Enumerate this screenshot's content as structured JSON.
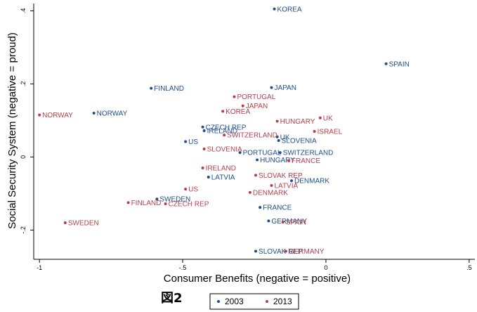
{
  "chart_data": {
    "type": "scatter",
    "title": "",
    "xlabel": "Consumer Benefits (negative = positive)",
    "ylabel": "Social Security System (negative = proud)",
    "xlim": [
      -1.02,
      0.52
    ],
    "ylim": [
      -0.28,
      0.42
    ],
    "xticks": [
      -1,
      -0.5,
      0,
      0.5
    ],
    "xtick_labels": [
      "-1",
      "-.5",
      "0",
      ".5"
    ],
    "yticks": [
      -0.2,
      0,
      0.2,
      0.4
    ],
    "ytick_labels": [
      "-.2",
      "0",
      ".2",
      ".4"
    ],
    "figure_label": "図2",
    "legend_position": "bottom-center",
    "series": [
      {
        "name": "2003",
        "color": "#1f4e8c",
        "points": [
          {
            "label": "KOREA",
            "x": -0.18,
            "y": 0.405
          },
          {
            "label": "SPAIN",
            "x": 0.21,
            "y": 0.255
          },
          {
            "label": "FINLAND",
            "x": -0.61,
            "y": 0.188
          },
          {
            "label": "JAPAN",
            "x": -0.19,
            "y": 0.19
          },
          {
            "label": "NORWAY",
            "x": -0.81,
            "y": 0.12
          },
          {
            "label": "CZECH REP",
            "x": -0.43,
            "y": 0.082
          },
          {
            "label": "IRELAND",
            "x": -0.425,
            "y": 0.072
          },
          {
            "label": "UK",
            "x": -0.17,
            "y": 0.055
          },
          {
            "label": "SLOVENIA",
            "x": -0.165,
            "y": 0.045
          },
          {
            "label": "US",
            "x": -0.49,
            "y": 0.042
          },
          {
            "label": "PORTUGAL",
            "x": -0.3,
            "y": 0.012
          },
          {
            "label": "SWITZERLAND",
            "x": -0.16,
            "y": 0.012
          },
          {
            "label": "HUNGARY",
            "x": -0.24,
            "y": -0.008
          },
          {
            "label": "DENMARK",
            "x": -0.12,
            "y": -0.065
          },
          {
            "label": "LATVIA",
            "x": -0.41,
            "y": -0.055
          },
          {
            "label": "SWEDEN",
            "x": -0.59,
            "y": -0.115
          },
          {
            "label": "FRANCE",
            "x": -0.23,
            "y": -0.138
          },
          {
            "label": "GERMANY",
            "x": -0.2,
            "y": -0.175
          },
          {
            "label": "SLOVAK REP",
            "x": -0.245,
            "y": -0.258
          }
        ]
      },
      {
        "name": "2013",
        "color": "#b5404b",
        "points": [
          {
            "label": "PORTUGAL",
            "x": -0.32,
            "y": 0.165
          },
          {
            "label": "JAPAN",
            "x": -0.29,
            "y": 0.14
          },
          {
            "label": "KOREA",
            "x": -0.36,
            "y": 0.125
          },
          {
            "label": "NORWAY",
            "x": -1.0,
            "y": 0.115
          },
          {
            "label": "UK",
            "x": -0.02,
            "y": 0.107
          },
          {
            "label": "HUNGARY",
            "x": -0.17,
            "y": 0.098
          },
          {
            "label": "ISRAEL",
            "x": -0.04,
            "y": 0.07
          },
          {
            "label": "SWITZERLAND",
            "x": -0.355,
            "y": 0.06
          },
          {
            "label": "SLOVENIA",
            "x": -0.425,
            "y": 0.022
          },
          {
            "label": "FRANCE",
            "x": -0.13,
            "y": -0.01
          },
          {
            "label": "IRELAND",
            "x": -0.43,
            "y": -0.03
          },
          {
            "label": "SLOVAK REP",
            "x": -0.245,
            "y": -0.05
          },
          {
            "label": "LATVIA",
            "x": -0.19,
            "y": -0.078
          },
          {
            "label": "US",
            "x": -0.49,
            "y": -0.088
          },
          {
            "label": "DENMARK",
            "x": -0.265,
            "y": -0.097
          },
          {
            "label": "FINLAND",
            "x": -0.69,
            "y": -0.125
          },
          {
            "label": "CZECH REP",
            "x": -0.56,
            "y": -0.128
          },
          {
            "label": "SPAIN",
            "x": -0.15,
            "y": -0.178
          },
          {
            "label": "SWEDEN",
            "x": -0.91,
            "y": -0.18
          },
          {
            "label": "GERMANY",
            "x": -0.14,
            "y": -0.258
          }
        ]
      }
    ]
  }
}
